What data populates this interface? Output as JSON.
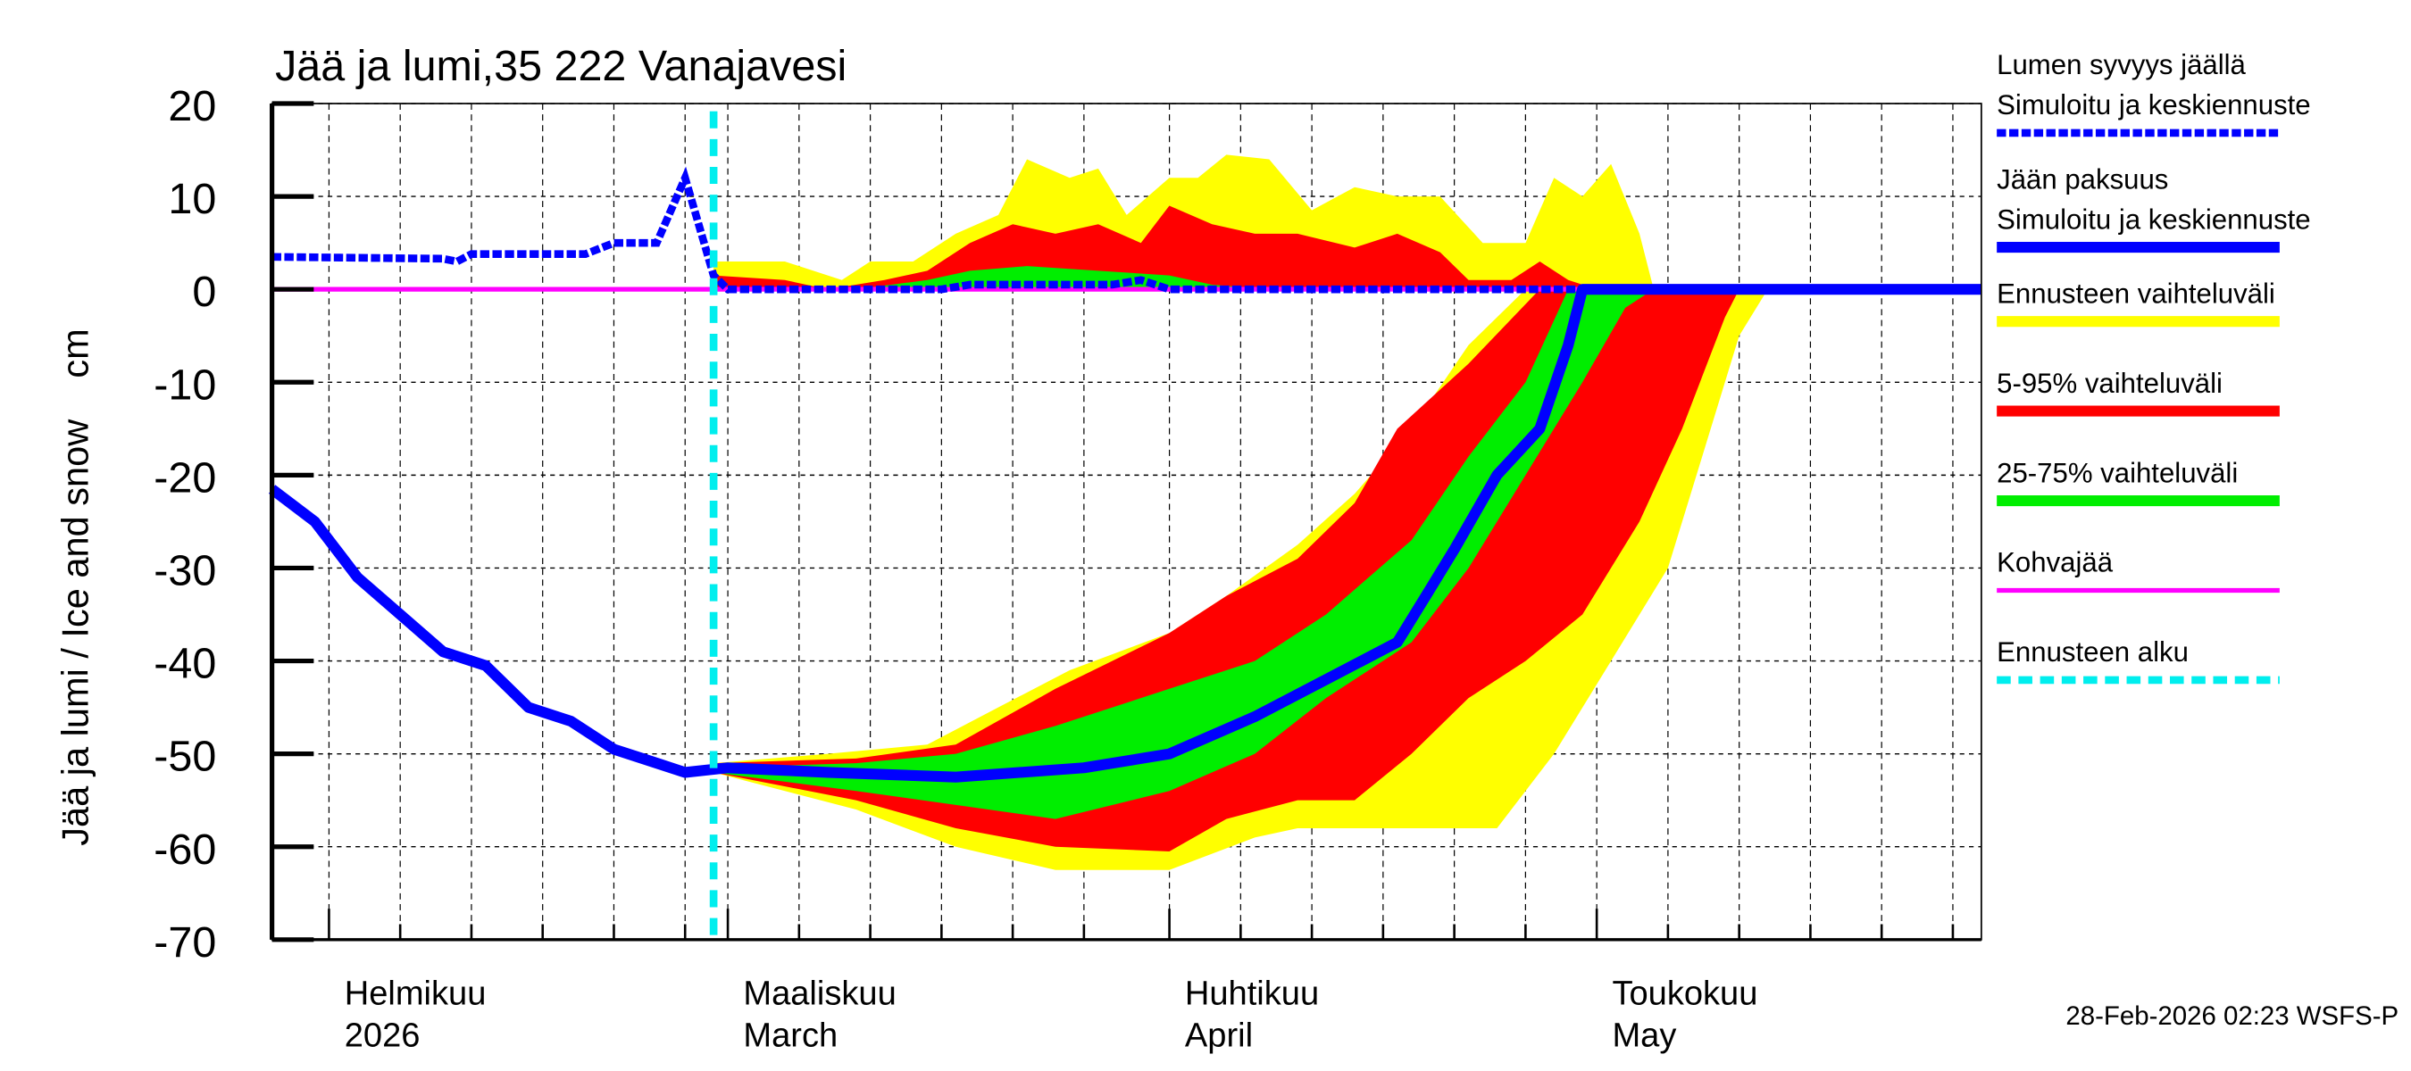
{
  "chart_data": {
    "type": "area",
    "title": "Jää ja lumi,35 222 Vanajavesi",
    "ylabel": "Jää ja lumi / Ice and snow    cm",
    "ylim": [
      -70,
      20
    ],
    "yticks": [
      "20",
      "10",
      "0",
      "-10",
      "-20",
      "-30",
      "-40",
      "-50",
      "-60",
      "-70"
    ],
    "ytick_values": [
      20,
      10,
      0,
      -10,
      -20,
      -30,
      -40,
      -50,
      -60,
      -70
    ],
    "xlim": [
      "2026-01-28",
      "2026-05-28"
    ],
    "xticks": [
      {
        "date": "2026-02-01",
        "line1": "Helmikuu",
        "line2": "2026"
      },
      {
        "date": "2026-03-01",
        "line1": "Maaliskuu",
        "line2": "March"
      },
      {
        "date": "2026-04-01",
        "line1": "Huhtikuu",
        "line2": "April"
      },
      {
        "date": "2026-05-01",
        "line1": "Toukokuu",
        "line2": "May"
      }
    ],
    "grid": true,
    "legend_position": "right",
    "forecast_start": "2026-02-28",
    "timestamp": "28-Feb-2026 02:23 WSFS-P",
    "colors": {
      "snow": "#0000ff",
      "ice": "#0000ff",
      "yellow": "#ffff00",
      "red": "#ff0000",
      "green": "#00ee00",
      "kohva": "#ff00ff",
      "forecast_start": "#00eeee"
    },
    "legend": [
      {
        "line1": "Lumen syvyys jäällä",
        "line2": "Simuloitu ja keskiennuste",
        "style": "dashed-blue"
      },
      {
        "line1": "Jään paksuus",
        "line2": "Simuloitu ja keskiennuste",
        "style": "solid-blue"
      },
      {
        "line1": "Ennusteen vaihteluväli",
        "line2": "",
        "style": "yellow"
      },
      {
        "line1": "5-95% vaihteluväli",
        "line2": "",
        "style": "red"
      },
      {
        "line1": "25-75% vaihteluväli",
        "line2": "",
        "style": "green"
      },
      {
        "line1": "Kohvajää",
        "line2": "",
        "style": "magenta"
      },
      {
        "line1": "Ennusteen alku",
        "line2": "",
        "style": "cyan-dashed"
      }
    ],
    "snow_depth": [
      [
        "2026-01-28",
        3.5
      ],
      [
        "2026-02-09",
        3.3
      ],
      [
        "2026-02-10",
        3
      ],
      [
        "2026-02-11",
        3.8
      ],
      [
        "2026-02-19",
        3.8
      ],
      [
        "2026-02-21",
        5
      ],
      [
        "2026-02-24",
        5
      ],
      [
        "2026-02-26",
        12
      ],
      [
        "2026-02-28",
        1.5
      ],
      [
        "2026-03-01",
        0
      ],
      [
        "2026-03-16",
        0
      ],
      [
        "2026-03-18",
        0.5
      ],
      [
        "2026-03-28",
        0.5
      ],
      [
        "2026-03-30",
        1
      ],
      [
        "2026-04-01",
        0
      ],
      [
        "2026-05-28",
        0
      ]
    ],
    "ice_thickness": [
      [
        "2026-01-28",
        -21.5
      ],
      [
        "2026-01-31",
        -25
      ],
      [
        "2026-02-03",
        -31
      ],
      [
        "2026-02-06",
        -35
      ],
      [
        "2026-02-09",
        -39
      ],
      [
        "2026-02-12",
        -40.5
      ],
      [
        "2026-02-15",
        -45
      ],
      [
        "2026-02-18",
        -46.5
      ],
      [
        "2026-02-21",
        -49.5
      ],
      [
        "2026-02-24",
        -51
      ],
      [
        "2026-02-26",
        -52
      ],
      [
        "2026-03-01",
        -51.5
      ],
      [
        "2026-03-08",
        -52
      ],
      [
        "2026-03-17",
        -52.5
      ],
      [
        "2026-03-26",
        -51.5
      ],
      [
        "2026-04-01",
        -50
      ],
      [
        "2026-04-07",
        -46
      ],
      [
        "2026-04-12",
        -42
      ],
      [
        "2026-04-17",
        -38
      ],
      [
        "2026-04-19",
        -33
      ],
      [
        "2026-04-21",
        -28
      ],
      [
        "2026-04-24",
        -20
      ],
      [
        "2026-04-27",
        -15
      ],
      [
        "2026-04-29",
        -6
      ],
      [
        "2026-04-30",
        0
      ],
      [
        "2026-05-28",
        0
      ]
    ],
    "kohvajaa": [
      [
        "2026-01-28",
        0
      ],
      [
        "2026-05-28",
        0
      ]
    ],
    "bands_ice": {
      "yellow_lower": [
        [
          "2026-02-28",
          -52
        ],
        [
          "2026-03-10",
          -56
        ],
        [
          "2026-03-17",
          -60
        ],
        [
          "2026-03-24",
          -62.5
        ],
        [
          "2026-04-01",
          -62.5
        ],
        [
          "2026-04-07",
          -59
        ],
        [
          "2026-04-10",
          -58
        ],
        [
          "2026-04-24",
          -58
        ],
        [
          "2026-04-28",
          -50
        ],
        [
          "2026-05-02",
          -40
        ],
        [
          "2026-05-06",
          -30
        ],
        [
          "2026-05-08",
          -20
        ],
        [
          "2026-05-11",
          -5
        ],
        [
          "2026-05-13",
          0
        ]
      ],
      "yellow_upper": [
        [
          "2026-02-28",
          -51
        ],
        [
          "2026-03-08",
          -50
        ],
        [
          "2026-03-15",
          -49
        ],
        [
          "2026-03-20",
          -45
        ],
        [
          "2026-03-25",
          -41
        ],
        [
          "2026-04-01",
          -37
        ],
        [
          "2026-04-05",
          -33
        ],
        [
          "2026-04-10",
          -27.5
        ],
        [
          "2026-04-14",
          -22
        ],
        [
          "2026-04-18",
          -15
        ],
        [
          "2026-04-22",
          -6
        ],
        [
          "2026-04-26",
          0
        ]
      ],
      "red_lower": [
        [
          "2026-02-28",
          -52
        ],
        [
          "2026-03-10",
          -55
        ],
        [
          "2026-03-17",
          -58
        ],
        [
          "2026-03-24",
          -60
        ],
        [
          "2026-04-01",
          -60.5
        ],
        [
          "2026-04-05",
          -57
        ],
        [
          "2026-04-10",
          -55
        ],
        [
          "2026-04-14",
          -55
        ],
        [
          "2026-04-18",
          -50
        ],
        [
          "2026-04-22",
          -44
        ],
        [
          "2026-04-26",
          -40
        ],
        [
          "2026-04-30",
          -35
        ],
        [
          "2026-05-04",
          -25
        ],
        [
          "2026-05-07",
          -15
        ],
        [
          "2026-05-10",
          -3
        ],
        [
          "2026-05-11",
          0
        ]
      ],
      "red_upper": [
        [
          "2026-02-28",
          -51
        ],
        [
          "2026-03-10",
          -50.5
        ],
        [
          "2026-03-17",
          -49
        ],
        [
          "2026-03-24",
          -43
        ],
        [
          "2026-04-01",
          -37
        ],
        [
          "2026-04-05",
          -33
        ],
        [
          "2026-04-10",
          -29
        ],
        [
          "2026-04-14",
          -23
        ],
        [
          "2026-04-17",
          -15
        ],
        [
          "2026-04-22",
          -8
        ],
        [
          "2026-04-27",
          0
        ]
      ],
      "green_lower": [
        [
          "2026-02-28",
          -52
        ],
        [
          "2026-03-10",
          -54
        ],
        [
          "2026-03-17",
          -55.5
        ],
        [
          "2026-03-24",
          -57
        ],
        [
          "2026-04-01",
          -54
        ],
        [
          "2026-04-07",
          -50
        ],
        [
          "2026-04-12",
          -44
        ],
        [
          "2026-04-18",
          -38
        ],
        [
          "2026-04-22",
          -30
        ],
        [
          "2026-04-26",
          -20
        ],
        [
          "2026-04-30",
          -10
        ],
        [
          "2026-05-03",
          -2
        ],
        [
          "2026-05-05",
          0
        ]
      ],
      "green_upper": [
        [
          "2026-02-28",
          -51.5
        ],
        [
          "2026-03-10",
          -51
        ],
        [
          "2026-03-17",
          -50
        ],
        [
          "2026-03-24",
          -47
        ],
        [
          "2026-04-01",
          -43
        ],
        [
          "2026-04-07",
          -40
        ],
        [
          "2026-04-12",
          -35
        ],
        [
          "2026-04-18",
          -27
        ],
        [
          "2026-04-22",
          -18
        ],
        [
          "2026-04-26",
          -10
        ],
        [
          "2026-04-29",
          0
        ]
      ]
    },
    "bands_snow": {
      "yellow_upper": [
        [
          "2026-02-28",
          3
        ],
        [
          "2026-03-05",
          3
        ],
        [
          "2026-03-09",
          1
        ],
        [
          "2026-03-11",
          3
        ],
        [
          "2026-03-14",
          3
        ],
        [
          "2026-03-17",
          6
        ],
        [
          "2026-03-20",
          8
        ],
        [
          "2026-03-22",
          14
        ],
        [
          "2026-03-25",
          12
        ],
        [
          "2026-03-27",
          13
        ],
        [
          "2026-03-29",
          8
        ],
        [
          "2026-04-01",
          12
        ],
        [
          "2026-04-03",
          12
        ],
        [
          "2026-04-05",
          14.5
        ],
        [
          "2026-04-08",
          14
        ],
        [
          "2026-04-11",
          8.5
        ],
        [
          "2026-04-14",
          11
        ],
        [
          "2026-04-17",
          10
        ],
        [
          "2026-04-20",
          10
        ],
        [
          "2026-04-23",
          5
        ],
        [
          "2026-04-26",
          5
        ],
        [
          "2026-04-28",
          12
        ],
        [
          "2026-04-30",
          10
        ],
        [
          "2026-05-02",
          13.5
        ],
        [
          "2026-05-04",
          6
        ],
        [
          "2026-05-05",
          0
        ]
      ],
      "red_upper": [
        [
          "2026-02-28",
          1.5
        ],
        [
          "2026-03-05",
          1
        ],
        [
          "2026-03-08",
          0
        ],
        [
          "2026-03-12",
          1
        ],
        [
          "2026-03-15",
          2
        ],
        [
          "2026-03-18",
          5
        ],
        [
          "2026-03-21",
          7
        ],
        [
          "2026-03-24",
          6
        ],
        [
          "2026-03-27",
          7
        ],
        [
          "2026-03-30",
          5
        ],
        [
          "2026-04-01",
          9
        ],
        [
          "2026-04-04",
          7
        ],
        [
          "2026-04-07",
          6
        ],
        [
          "2026-04-10",
          6
        ],
        [
          "2026-04-14",
          4.5
        ],
        [
          "2026-04-17",
          6
        ],
        [
          "2026-04-20",
          4
        ],
        [
          "2026-04-22",
          1
        ],
        [
          "2026-04-25",
          1
        ],
        [
          "2026-04-27",
          3
        ],
        [
          "2026-04-29",
          1
        ],
        [
          "2026-05-01",
          0
        ]
      ],
      "green_upper": [
        [
          "2026-03-10",
          0
        ],
        [
          "2026-03-15",
          1
        ],
        [
          "2026-03-18",
          2
        ],
        [
          "2026-03-22",
          2.5
        ],
        [
          "2026-03-27",
          2
        ],
        [
          "2026-04-01",
          1.5
        ],
        [
          "2026-04-04",
          0.5
        ],
        [
          "2026-04-08",
          0
        ]
      ]
    }
  }
}
